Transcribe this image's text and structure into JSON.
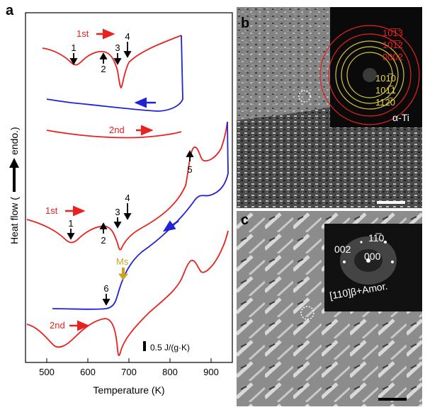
{
  "figure": {
    "panels": [
      "a",
      "b",
      "c"
    ]
  },
  "panel_a": {
    "xlabel": "Temperature (K)",
    "ylabel_parts": [
      "Heat flow (",
      "endo.)"
    ],
    "x_ticks": [
      "500",
      "600",
      "700",
      "800",
      "900"
    ],
    "scale_bar_label": "0.5 J/(g·K)",
    "colors": {
      "heating": "#e8221f",
      "cooling": "#1f22d6",
      "ms": "#c9a227"
    },
    "upper_set": {
      "first_label": "1st",
      "second_label": "2nd",
      "markers": [
        "1",
        "2",
        "3",
        "4"
      ]
    },
    "lower_set": {
      "first_label": "1st",
      "second_label": "2nd",
      "markers": [
        "1",
        "2",
        "3",
        "4",
        "5",
        "6"
      ],
      "ms_label": "Ms"
    }
  },
  "chart_data": {
    "type": "line",
    "xlabel": "Temperature (K)",
    "ylabel": "Heat flow (endo.)",
    "xlim": [
      450,
      950
    ],
    "series": [
      {
        "name": "1st",
        "values": [
          [
            505,
            0.0
          ],
          [
            540,
            -0.08
          ],
          [
            560,
            -0.22
          ],
          [
            580,
            -0.12
          ],
          [
            620,
            -0.02
          ],
          [
            645,
            -0.05
          ],
          [
            665,
            -0.35
          ],
          [
            670,
            -0.65
          ],
          [
            680,
            -0.3
          ],
          [
            700,
            -0.05
          ],
          [
            750,
            0.05
          ],
          [
            800,
            0.2
          ],
          [
            820,
            0.32
          ],
          [
            828,
            0.38
          ]
        ]
      },
      {
        "name": "2nd",
        "values": [
          [
            505,
            0.0
          ],
          [
            600,
            0.02
          ],
          [
            700,
            0.04
          ],
          [
            800,
            0.07
          ],
          [
            820,
            0.09
          ]
        ]
      }
    ]
  },
  "panel_b": {
    "sad_rings_red": [
      "10̅1̅3",
      "10̅1̅2",
      "0002"
    ],
    "sad_rings_yellow": [
      "101̅0",
      "101̅1",
      "112̅0"
    ],
    "phase_label": "α-Ti"
  },
  "panel_c": {
    "spots": [
      "002",
      "11̅0",
      "000"
    ],
    "zone_label": "[110]β+Amor."
  }
}
